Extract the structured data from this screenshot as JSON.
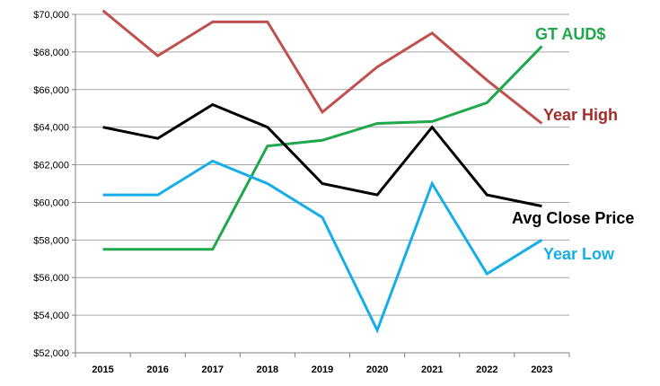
{
  "chart_data": {
    "type": "line",
    "title": "",
    "xlabel": "",
    "ylabel": "",
    "categories": [
      "2015",
      "2016",
      "2017",
      "2018",
      "2019",
      "2020",
      "2021",
      "2022",
      "2023"
    ],
    "ylim": [
      52000,
      70000
    ],
    "y_ticks": [
      52000,
      54000,
      56000,
      58000,
      60000,
      62000,
      64000,
      66000,
      68000,
      70000
    ],
    "y_tick_labels": [
      "$52,000",
      "$54,000",
      "$56,000",
      "$58,000",
      "$60,000",
      "$62,000",
      "$64,000",
      "$66,000",
      "$68,000",
      "$70,000"
    ],
    "grid": true,
    "legend": "inline labels at line ends",
    "series": [
      {
        "key": "year_high",
        "name": "Year High",
        "color": "#c0504d",
        "values": [
          70200,
          67800,
          69600,
          69600,
          64800,
          67200,
          69000,
          66500,
          64200
        ]
      },
      {
        "key": "gt_aud",
        "name": "GT AUD$",
        "color": "#1fa84b",
        "values": [
          57500,
          57500,
          57500,
          63000,
          63300,
          64200,
          64300,
          65300,
          68300
        ]
      },
      {
        "key": "avg_close",
        "name": "Avg Close Price",
        "color": "#000000",
        "values": [
          64000,
          63400,
          65200,
          64000,
          61000,
          60400,
          64000,
          60400,
          59800
        ]
      },
      {
        "key": "year_low",
        "name": "Year Low",
        "color": "#16aee8",
        "values": [
          60400,
          60400,
          62200,
          61000,
          59200,
          53200,
          61000,
          56200,
          58000
        ]
      }
    ]
  }
}
